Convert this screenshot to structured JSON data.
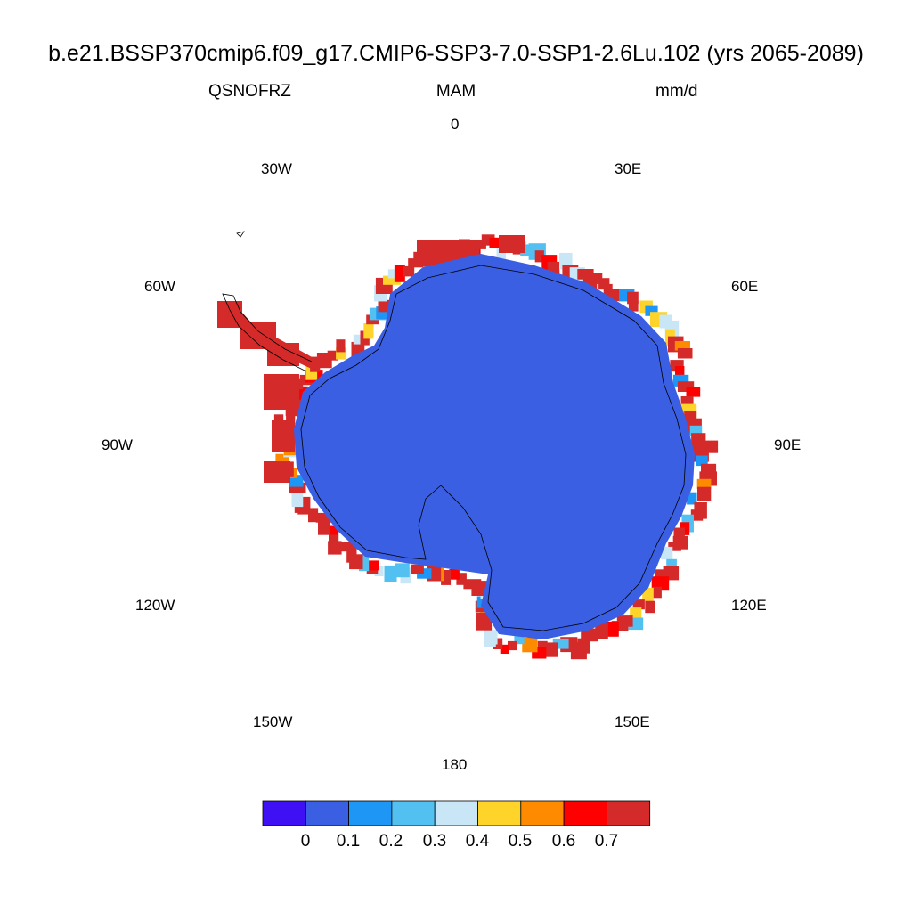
{
  "title": "b.e21.BSSP370cmip6.f09_g17.CMIP6-SSP3-7.0-SSP1-2.6Lu.102 (yrs 2065-2089)",
  "variable": "QSNOFRZ",
  "season": "MAM",
  "units": "mm/d",
  "longitude_labels": [
    "0",
    "30E",
    "60E",
    "90E",
    "120E",
    "150E",
    "180",
    "150W",
    "120W",
    "90W",
    "60W",
    "30W"
  ],
  "colorbar": {
    "colors": [
      "#3f10f4",
      "#3a5fe2",
      "#1e96f6",
      "#52c1f2",
      "#c8e6f6",
      "#fed42a",
      "#fe8a00",
      "#fe0000",
      "#d52a2a"
    ],
    "labels": [
      "0",
      "0.1",
      "0.2",
      "0.3",
      "0.4",
      "0.5",
      "0.6",
      "0.7"
    ]
  },
  "map": {
    "projection": "south-polar-stereographic",
    "interior_color": "#3a5fe2",
    "coast_colors": [
      "#d52a2a",
      "#fe0000",
      "#fe8a00",
      "#fed42a",
      "#c8e6f6",
      "#52c1f2",
      "#1e96f6"
    ]
  }
}
